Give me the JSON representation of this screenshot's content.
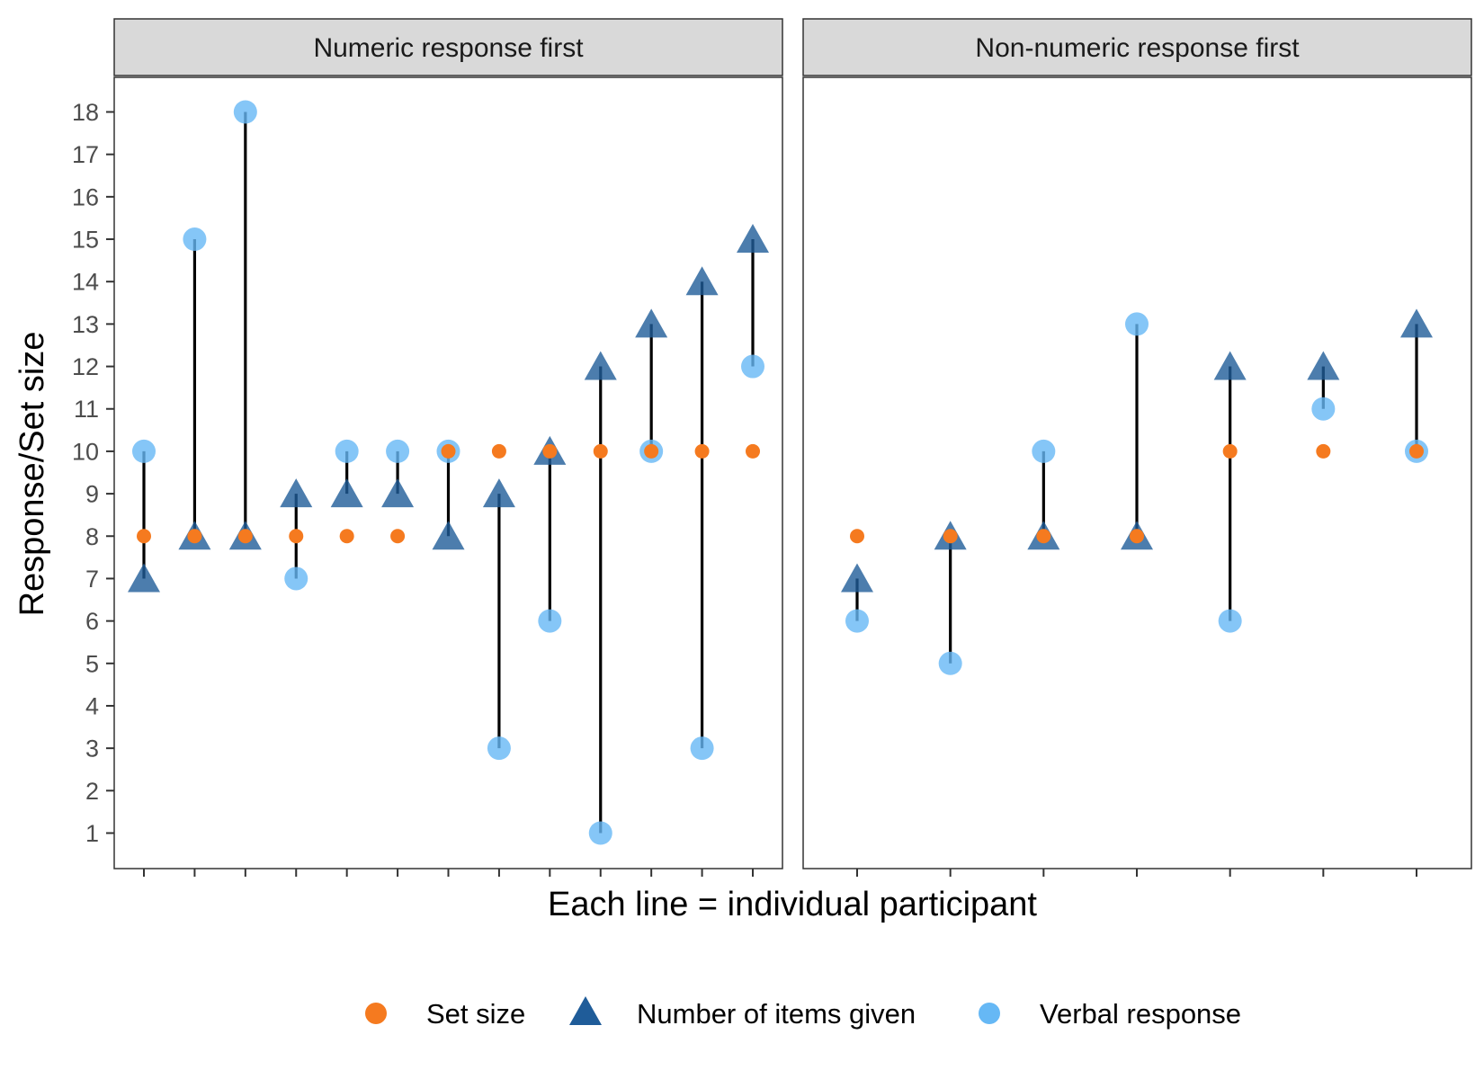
{
  "chart_data": {
    "type": "scatter",
    "ylabel": "Response/Set size",
    "xlabel": "Each line = individual participant",
    "ylim": [
      1,
      18
    ],
    "yticks": [
      1,
      2,
      3,
      4,
      5,
      6,
      7,
      8,
      9,
      10,
      11,
      12,
      13,
      14,
      15,
      16,
      17,
      18
    ],
    "grid": false,
    "legend_position": "bottom",
    "legend": [
      {
        "label": "Set size",
        "shape": "circle-small",
        "color": "#F57A1F"
      },
      {
        "label": "Number of items given",
        "shape": "triangle",
        "color": "#1F5C99"
      },
      {
        "label": "Verbal response",
        "shape": "circle",
        "color": "#66B8F5"
      }
    ],
    "panels": [
      {
        "title": "Numeric response first",
        "participants": [
          {
            "set_size": 8,
            "items_given": 7,
            "verbal": 10
          },
          {
            "set_size": 8,
            "items_given": 8,
            "verbal": 15
          },
          {
            "set_size": 8,
            "items_given": 8,
            "verbal": 18
          },
          {
            "set_size": 8,
            "items_given": 9,
            "verbal": 7
          },
          {
            "set_size": 8,
            "items_given": 9,
            "verbal": 10
          },
          {
            "set_size": 8,
            "items_given": 9,
            "verbal": 10
          },
          {
            "set_size": 10,
            "items_given": 8,
            "verbal": 10
          },
          {
            "set_size": 10,
            "items_given": 9,
            "verbal": 3
          },
          {
            "set_size": 10,
            "items_given": 10,
            "verbal": 6
          },
          {
            "set_size": 10,
            "items_given": 12,
            "verbal": 1
          },
          {
            "set_size": 10,
            "items_given": 13,
            "verbal": 10
          },
          {
            "set_size": 10,
            "items_given": 14,
            "verbal": 3
          },
          {
            "set_size": 10,
            "items_given": 15,
            "verbal": 12
          }
        ]
      },
      {
        "title": "Non-numeric response first",
        "participants": [
          {
            "set_size": 8,
            "items_given": 7,
            "verbal": 6
          },
          {
            "set_size": 8,
            "items_given": 8,
            "verbal": 5
          },
          {
            "set_size": 8,
            "items_given": 8,
            "verbal": 10
          },
          {
            "set_size": 8,
            "items_given": 8,
            "verbal": 13
          },
          {
            "set_size": 10,
            "items_given": 12,
            "verbal": 6
          },
          {
            "set_size": 10,
            "items_given": 12,
            "verbal": 11
          },
          {
            "set_size": 10,
            "items_given": 13,
            "verbal": 10
          }
        ]
      }
    ]
  }
}
